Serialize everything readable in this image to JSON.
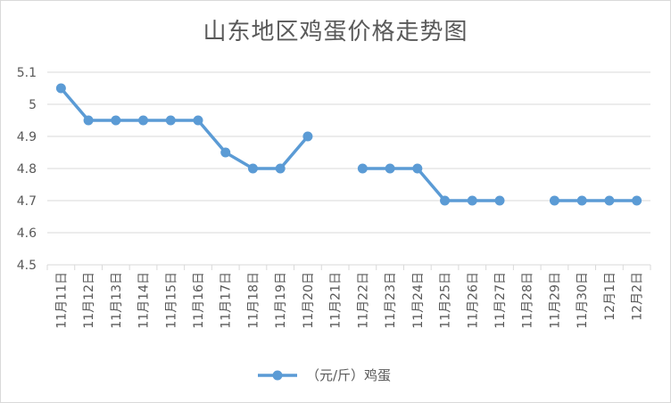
{
  "chart_data": {
    "type": "line",
    "title": "山东地区鸡蛋价格走势图",
    "xlabel": "",
    "ylabel": "",
    "categories": [
      "11月11日",
      "11月12日",
      "11月13日",
      "11月14日",
      "11月15日",
      "11月16日",
      "11月17日",
      "11月18日",
      "11月19日",
      "11月20日",
      "11月21日",
      "11月22日",
      "11月23日",
      "11月24日",
      "11月25日",
      "11月26日",
      "11月27日",
      "11月28日",
      "11月29日",
      "11月30日",
      "12月1日",
      "12月2日"
    ],
    "series": [
      {
        "name": "（元/斤）鸡蛋",
        "values": [
          5.05,
          4.95,
          4.95,
          4.95,
          4.95,
          4.95,
          4.85,
          4.8,
          4.8,
          4.9,
          null,
          4.8,
          4.8,
          4.8,
          4.7,
          4.7,
          4.7,
          null,
          4.7,
          4.7,
          4.7,
          4.7
        ]
      }
    ],
    "ylim": [
      4.5,
      5.1
    ],
    "yticks": [
      "4.5",
      "4.6",
      "4.7",
      "4.8",
      "4.9",
      "5",
      "5.1"
    ],
    "grid": true,
    "legend": "bottom",
    "series_color": "#5b9bd5"
  }
}
